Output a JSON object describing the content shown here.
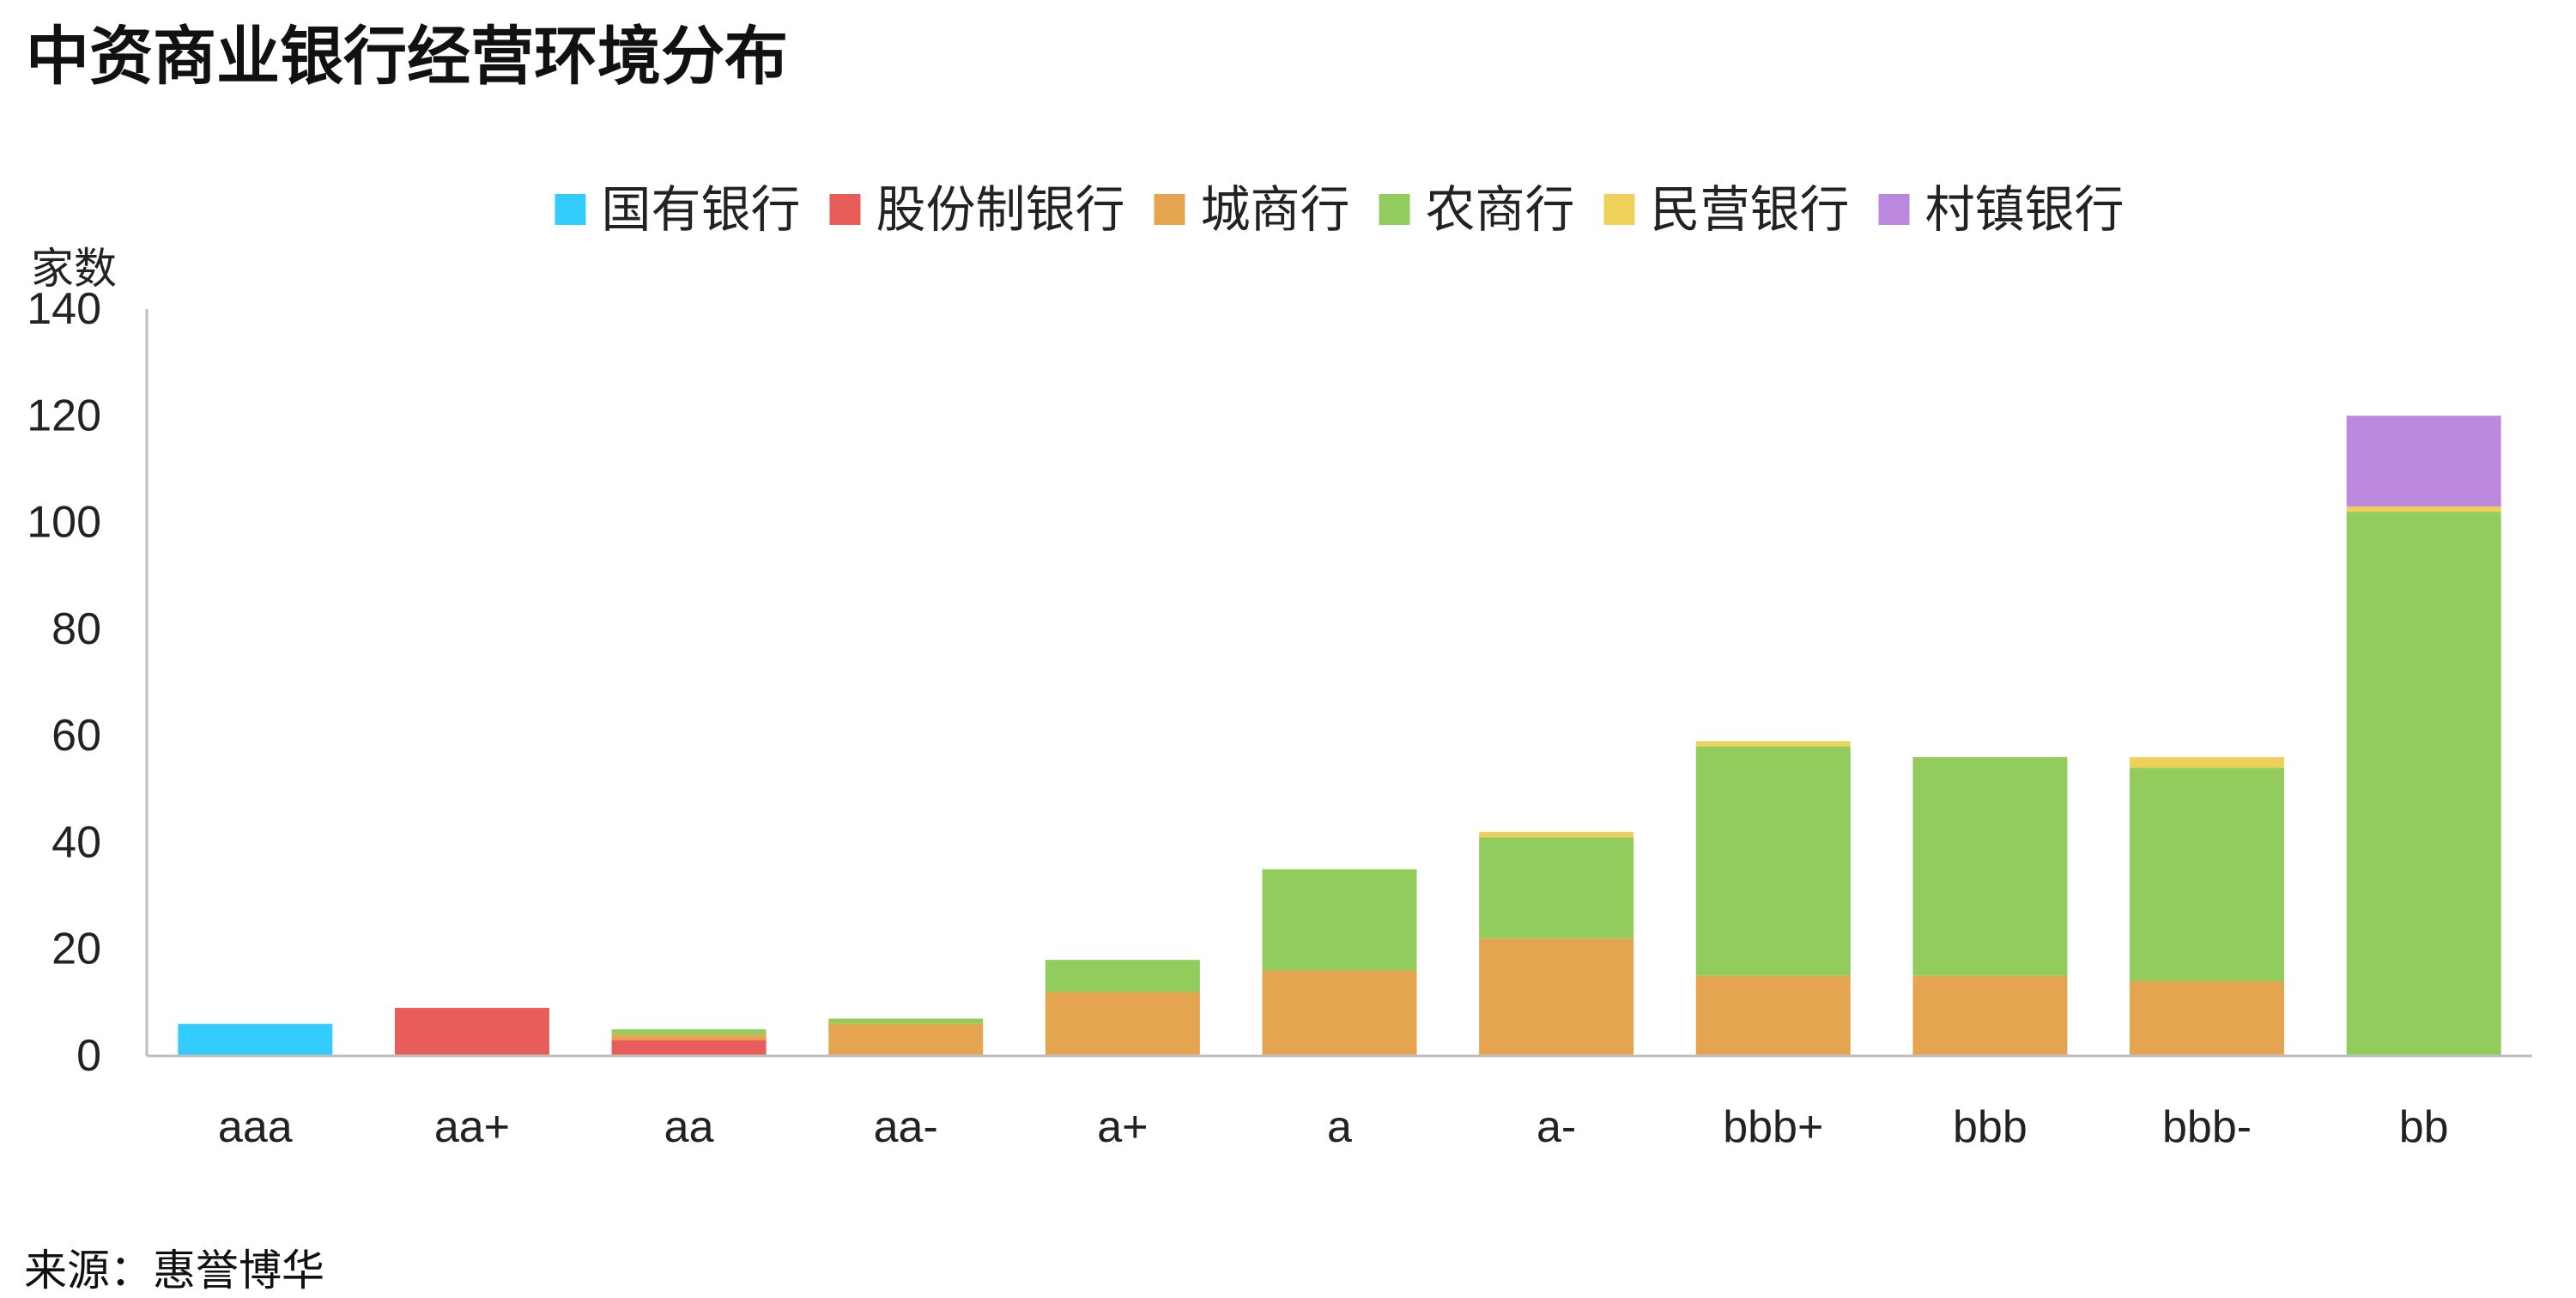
{
  "title": "中资商业银行经营环境分布",
  "source": "来源：惠誉博华",
  "chart_data": {
    "type": "bar",
    "stacked": true,
    "ylabel": "家数",
    "xlabel": "",
    "ylim": [
      0,
      140
    ],
    "yticks": [
      0,
      20,
      40,
      60,
      80,
      100,
      120,
      140
    ],
    "grid": false,
    "legend_position": "top",
    "categories": [
      "aaa",
      "aa+",
      "aa",
      "aa-",
      "a+",
      "a",
      "a-",
      "bbb+",
      "bbb",
      "bbb-",
      "bb"
    ],
    "series": [
      {
        "name": "国有银行",
        "color": "#33ccff",
        "values": [
          6,
          0,
          0,
          0,
          0,
          0,
          0,
          0,
          0,
          0,
          0
        ]
      },
      {
        "name": "股份制银行",
        "color": "#e85d5a",
        "values": [
          0,
          9,
          3,
          0,
          0,
          0,
          0,
          0,
          0,
          0,
          0
        ]
      },
      {
        "name": "城商行",
        "color": "#e5a550",
        "values": [
          0,
          0,
          1,
          6,
          12,
          16,
          22,
          15,
          15,
          14,
          0
        ]
      },
      {
        "name": "农商行",
        "color": "#92cc5c",
        "values": [
          0,
          0,
          1,
          1,
          6,
          19,
          19,
          43,
          41,
          40,
          102
        ]
      },
      {
        "name": "民营银行",
        "color": "#efd05a",
        "values": [
          0,
          0,
          0,
          0,
          0,
          0,
          1,
          1,
          0,
          2,
          1
        ]
      },
      {
        "name": "村镇银行",
        "color": "#bb88dd",
        "values": [
          0,
          0,
          0,
          0,
          0,
          0,
          0,
          0,
          0,
          0,
          17
        ]
      }
    ]
  }
}
